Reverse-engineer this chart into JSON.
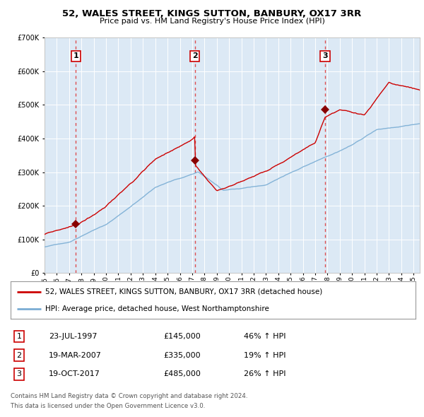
{
  "title": "52, WALES STREET, KINGS SUTTON, BANBURY, OX17 3RR",
  "subtitle": "Price paid vs. HM Land Registry's House Price Index (HPI)",
  "legend_line1": "52, WALES STREET, KINGS SUTTON, BANBURY, OX17 3RR (detached house)",
  "legend_line2": "HPI: Average price, detached house, West Northamptonshire",
  "footer_line1": "Contains HM Land Registry data © Crown copyright and database right 2024.",
  "footer_line2": "This data is licensed under the Open Government Licence v3.0.",
  "transactions": [
    {
      "num": 1,
      "date": "23-JUL-1997",
      "price": 145000,
      "pct": "46%",
      "x_year": 1997.55
    },
    {
      "num": 2,
      "date": "19-MAR-2007",
      "price": 335000,
      "pct": "19%",
      "x_year": 2007.22
    },
    {
      "num": 3,
      "date": "19-OCT-2017",
      "price": 485000,
      "pct": "26%",
      "x_year": 2017.8
    }
  ],
  "red_line_color": "#cc0000",
  "blue_line_color": "#7aadd4",
  "background_color": "#dce9f5",
  "grid_color": "#ffffff",
  "dashed_line_color": "#dd3333",
  "marker_color": "#880000",
  "box_color": "#cc0000",
  "ylim": [
    0,
    700000
  ],
  "xlim_start": 1995,
  "xlim_end": 2025.5
}
